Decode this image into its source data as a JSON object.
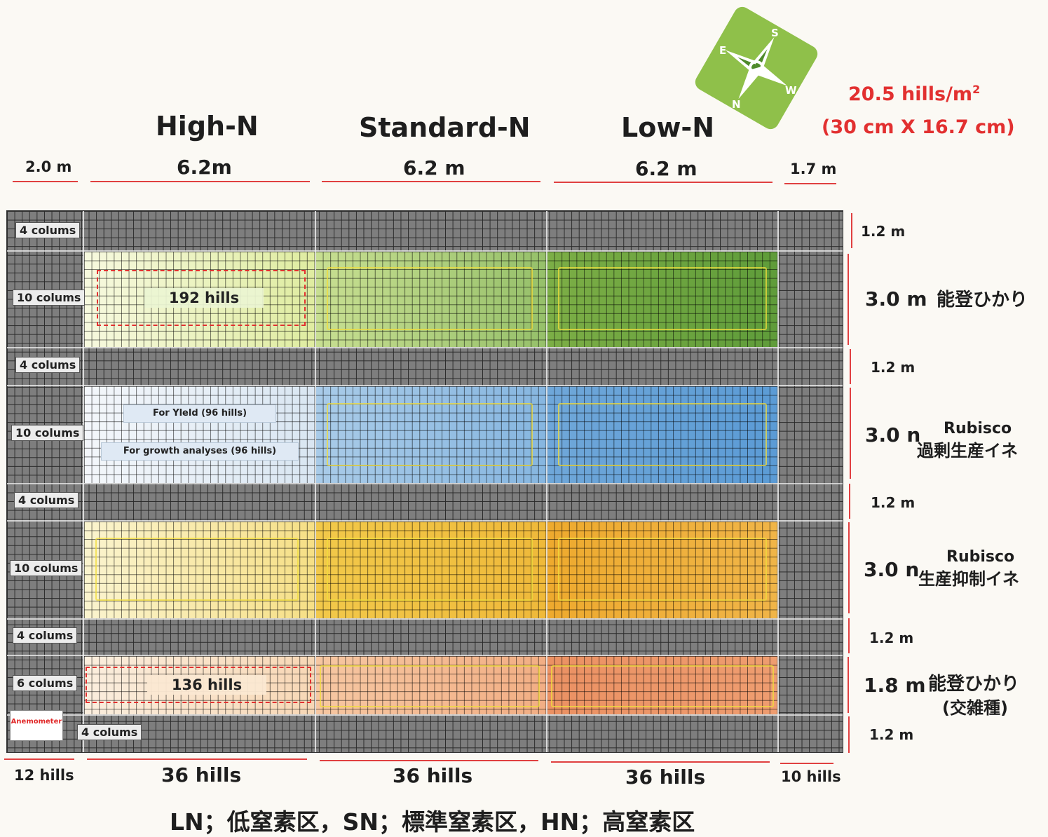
{
  "treatments": [
    "High-N",
    "Standard-N",
    "Low-N"
  ],
  "density": {
    "value": "20.5 hills/m",
    "sup": "2",
    "spacing": "(30 cm X 16.7 cm)"
  },
  "colors": {
    "accent_red": "#e23030",
    "compass_green": "#8fc04a"
  },
  "compass": {
    "icon": "compass-icon",
    "letters": [
      "S",
      "E",
      "W",
      "N"
    ]
  },
  "top_widths": [
    "2.0 m",
    "6.2m",
    "6.2 m",
    "6.2 m",
    "1.7 m"
  ],
  "column_labels": [
    "4 colums",
    "10 colums",
    "4 colums",
    "10 colums",
    "4 colums",
    "10 colums",
    "4 colums",
    "6 colums",
    "4 colums"
  ],
  "right_dims": [
    "1.2 m",
    "3.0 m",
    "1.2 m",
    "3.0 n",
    "1.2 m",
    "3.0 n",
    "1.2 m",
    "1.8 m",
    "1.2 m"
  ],
  "varieties": {
    "v1": "能登ひかり",
    "v2_line1": "Rubisco",
    "v2_line2": "過剰生産イネ",
    "v3_line1": "Rubisco",
    "v3_line2": "生産抑制イネ",
    "v4_line1": "能登ひかり",
    "v4_line2": "(交雑種)"
  },
  "annotations": {
    "hills_192": "192 hills",
    "for_yield": "For Yleld (96 hills)",
    "for_growth": "For growth analyses (96 hills)",
    "hills_136": "136 hills",
    "anemometer": "Anemometer"
  },
  "bottom_hills": [
    "12 hills",
    "36 hills",
    "36 hills",
    "36 hills",
    "10 hills"
  ],
  "legend": "LN；低窒素区，SN；標準窒素区，HN；高窒素区"
}
